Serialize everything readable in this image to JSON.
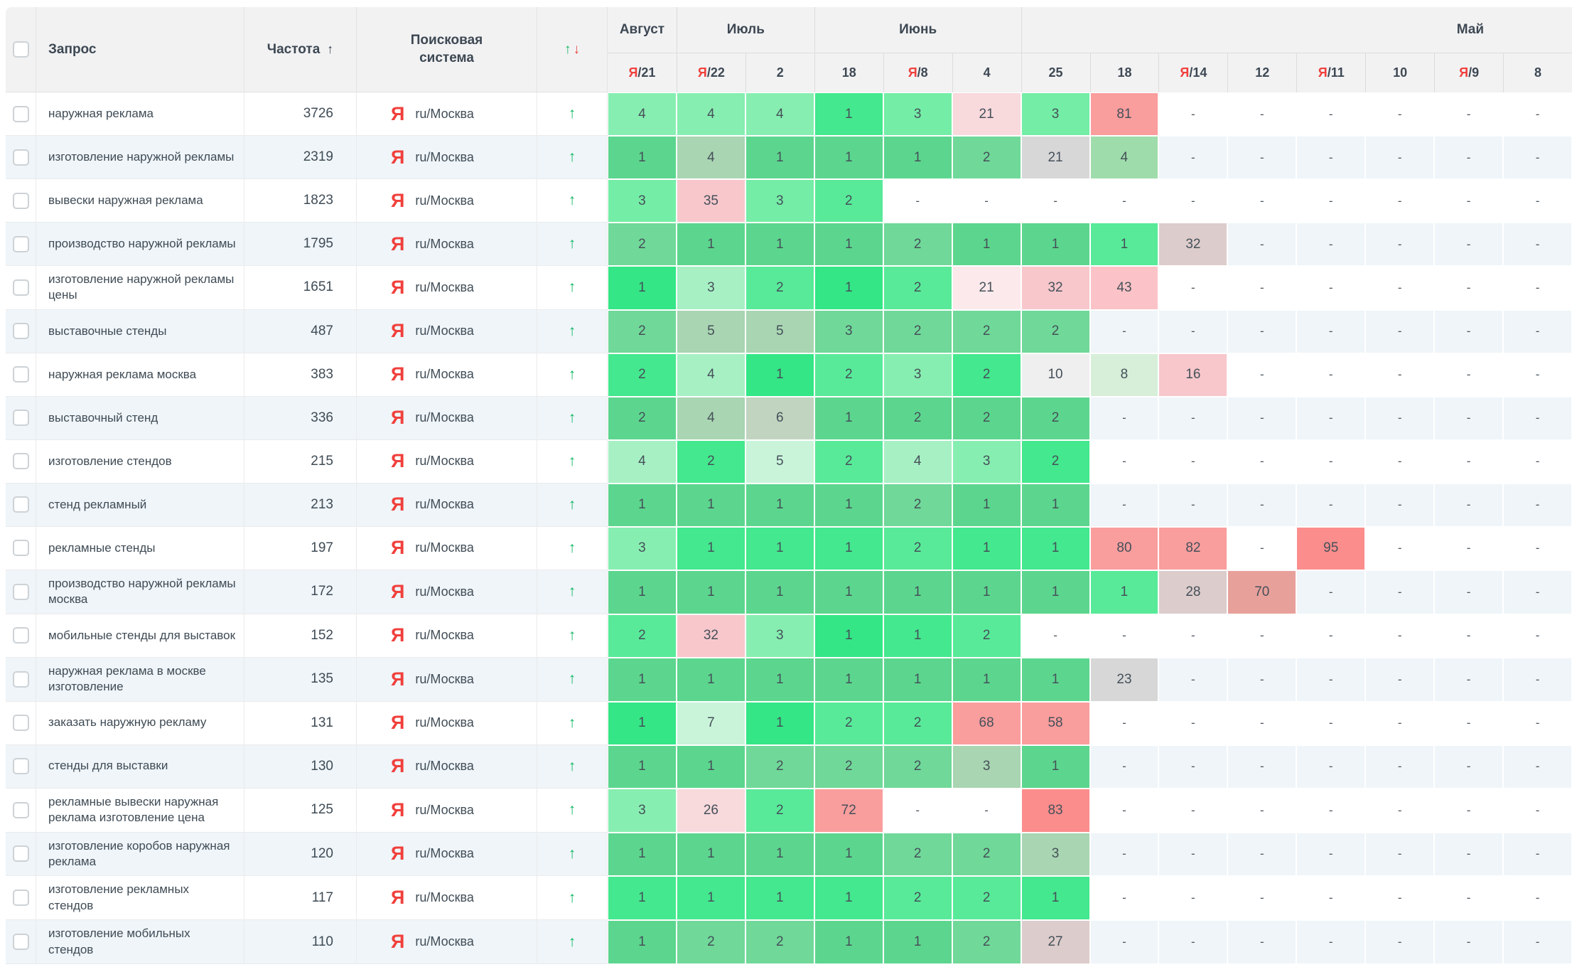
{
  "header": {
    "query_label": "Запрос",
    "frequency_label": "Частота",
    "engine_label": "Поисковая система",
    "sort_asc_icon": "↑",
    "trend_up_icon": "↑",
    "trend_down_icon": "↓",
    "month_groups": [
      {
        "label": "Август",
        "span": 1
      },
      {
        "label": "Июль",
        "span": 2
      },
      {
        "label": "Июнь",
        "span": 3
      },
      {
        "label": "Май",
        "span": 8
      }
    ],
    "date_columns": [
      {
        "label": "21",
        "yandex_update": true
      },
      {
        "label": "22",
        "yandex_update": true
      },
      {
        "label": "2",
        "yandex_update": false
      },
      {
        "label": "18",
        "yandex_update": false
      },
      {
        "label": "8",
        "yandex_update": true
      },
      {
        "label": "4",
        "yandex_update": false
      },
      {
        "label": "25",
        "yandex_update": false
      },
      {
        "label": "18",
        "yandex_update": false
      },
      {
        "label": "14",
        "yandex_update": true
      },
      {
        "label": "12",
        "yandex_update": false
      },
      {
        "label": "11",
        "yandex_update": true
      },
      {
        "label": "10",
        "yandex_update": false
      },
      {
        "label": "9",
        "yandex_update": true
      },
      {
        "label": "8",
        "yandex_update": false
      }
    ]
  },
  "engine": {
    "yandex_letter": "Я",
    "region_label": "ru/Москва"
  },
  "dash": "-",
  "palette": {
    "g0": "#34e686",
    "g1": "#44e88e",
    "g2": "#58ea99",
    "g3": "#74eda6",
    "g4": "#87eeb1",
    "g5": "#a7f0c4",
    "g6": "#c9f4da",
    "gp": "#d7efd9",
    "mg": "#9fdcab",
    "m1": "#5cd68e",
    "m2": "#70d899",
    "gg": "#a9d5b2",
    "gh": "#c1d4c0",
    "gr1": "#d7d7d8",
    "gr2": "#efeff0",
    "p0": "#fce9eb",
    "p1": "#f8d9dc",
    "p2": "#f7c7cc",
    "p3": "#fbc3c7",
    "s1": "#f99d9d",
    "s2": "#fb8d8d",
    "d1": "#dccccb",
    "d2": "#e8a09b",
    "w": ""
  },
  "rows": [
    {
      "query": "наружная реклама",
      "frequency": "3726",
      "values": [
        "4",
        "4",
        "4",
        "1",
        "3",
        "21",
        "3",
        "81",
        "-",
        "-",
        "-",
        "-",
        "-",
        "-"
      ],
      "colors": [
        "g4",
        "g4",
        "g4",
        "g1",
        "g3",
        "p1",
        "g3",
        "s1",
        "w",
        "w",
        "w",
        "w",
        "w",
        "w"
      ]
    },
    {
      "query": "изготовление наружной рекламы",
      "frequency": "2319",
      "values": [
        "1",
        "4",
        "1",
        "1",
        "1",
        "2",
        "21",
        "4",
        "-",
        "-",
        "-",
        "-",
        "-",
        "-"
      ],
      "colors": [
        "m1",
        "gg",
        "m1",
        "m1",
        "m1",
        "m2",
        "gr1",
        "mg",
        "w",
        "w",
        "w",
        "w",
        "w",
        "w"
      ]
    },
    {
      "query": "вывески наружная реклама",
      "frequency": "1823",
      "values": [
        "3",
        "35",
        "3",
        "2",
        "-",
        "-",
        "-",
        "-",
        "-",
        "-",
        "-",
        "-",
        "-",
        "-"
      ],
      "colors": [
        "g3",
        "p2",
        "g3",
        "g2",
        "w",
        "w",
        "w",
        "w",
        "w",
        "w",
        "w",
        "w",
        "w",
        "w"
      ]
    },
    {
      "query": "производство наружной рекламы",
      "frequency": "1795",
      "values": [
        "2",
        "1",
        "1",
        "1",
        "2",
        "1",
        "1",
        "1",
        "32",
        "-",
        "-",
        "-",
        "-",
        "-"
      ],
      "colors": [
        "m2",
        "m1",
        "m1",
        "m1",
        "m2",
        "m1",
        "m1",
        "g2",
        "d1",
        "w",
        "w",
        "w",
        "w",
        "w"
      ]
    },
    {
      "query": "изготовление наружной рекламы цены",
      "frequency": "1651",
      "values": [
        "1",
        "3",
        "2",
        "1",
        "2",
        "21",
        "32",
        "43",
        "-",
        "-",
        "-",
        "-",
        "-",
        "-"
      ],
      "colors": [
        "g0",
        "g5",
        "g2",
        "g0",
        "g2",
        "p0",
        "p2",
        "p3",
        "w",
        "w",
        "w",
        "w",
        "w",
        "w"
      ]
    },
    {
      "query": "выставочные стенды",
      "frequency": "487",
      "values": [
        "2",
        "5",
        "5",
        "3",
        "2",
        "2",
        "2",
        "-",
        "-",
        "-",
        "-",
        "-",
        "-",
        "-"
      ],
      "colors": [
        "m2",
        "gg",
        "gg",
        "m2",
        "m2",
        "m2",
        "m2",
        "w",
        "w",
        "w",
        "w",
        "w",
        "w",
        "w"
      ]
    },
    {
      "query": "наружная реклама москва",
      "frequency": "383",
      "values": [
        "2",
        "4",
        "1",
        "2",
        "3",
        "2",
        "10",
        "8",
        "16",
        "-",
        "-",
        "-",
        "-",
        "-"
      ],
      "colors": [
        "g1",
        "g5",
        "g0",
        "g2",
        "g4",
        "g1",
        "gr2",
        "gp",
        "p2",
        "w",
        "w",
        "w",
        "w",
        "w"
      ]
    },
    {
      "query": "выставочный стенд",
      "frequency": "336",
      "values": [
        "2",
        "4",
        "6",
        "1",
        "2",
        "2",
        "2",
        "-",
        "-",
        "-",
        "-",
        "-",
        "-",
        "-"
      ],
      "colors": [
        "m1",
        "gg",
        "gh",
        "m1",
        "m1",
        "m1",
        "m1",
        "w",
        "w",
        "w",
        "w",
        "w",
        "w",
        "w"
      ]
    },
    {
      "query": "изготовление стендов",
      "frequency": "215",
      "values": [
        "4",
        "2",
        "5",
        "2",
        "4",
        "3",
        "2",
        "-",
        "-",
        "-",
        "-",
        "-",
        "-",
        "-"
      ],
      "colors": [
        "g5",
        "g1",
        "g6",
        "g2",
        "g5",
        "g4",
        "g1",
        "w",
        "w",
        "w",
        "w",
        "w",
        "w",
        "w"
      ]
    },
    {
      "query": "стенд рекламный",
      "frequency": "213",
      "values": [
        "1",
        "1",
        "1",
        "1",
        "2",
        "1",
        "1",
        "-",
        "-",
        "-",
        "-",
        "-",
        "-",
        "-"
      ],
      "colors": [
        "m1",
        "m1",
        "m1",
        "m1",
        "m2",
        "m1",
        "m1",
        "w",
        "w",
        "w",
        "w",
        "w",
        "w",
        "w"
      ]
    },
    {
      "query": "рекламные стенды",
      "frequency": "197",
      "values": [
        "3",
        "1",
        "1",
        "1",
        "2",
        "1",
        "1",
        "80",
        "82",
        "-",
        "95",
        "-",
        "-",
        "-"
      ],
      "colors": [
        "g4",
        "g1",
        "g1",
        "g1",
        "g2",
        "g1",
        "g1",
        "s1",
        "s1",
        "w",
        "s2",
        "w",
        "w",
        "w"
      ]
    },
    {
      "query": "производство наружной рекламы москва",
      "frequency": "172",
      "values": [
        "1",
        "1",
        "1",
        "1",
        "1",
        "1",
        "1",
        "1",
        "28",
        "70",
        "-",
        "-",
        "-",
        "-"
      ],
      "colors": [
        "m1",
        "m1",
        "m1",
        "m1",
        "m1",
        "m1",
        "m1",
        "g2",
        "d1",
        "d2",
        "w",
        "w",
        "w",
        "w"
      ]
    },
    {
      "query": "мобильные стенды для выставок",
      "frequency": "152",
      "values": [
        "2",
        "32",
        "3",
        "1",
        "1",
        "2",
        "-",
        "-",
        "-",
        "-",
        "-",
        "-",
        "-",
        "-"
      ],
      "colors": [
        "g2",
        "p2",
        "g4",
        "g0",
        "g1",
        "g2",
        "w",
        "w",
        "w",
        "w",
        "w",
        "w",
        "w",
        "w"
      ]
    },
    {
      "query": "наружная реклама в москве изготовление",
      "frequency": "135",
      "values": [
        "1",
        "1",
        "1",
        "1",
        "1",
        "1",
        "1",
        "23",
        "-",
        "-",
        "-",
        "-",
        "-",
        "-"
      ],
      "colors": [
        "m1",
        "m1",
        "m1",
        "m1",
        "m1",
        "m1",
        "m1",
        "gr1",
        "w",
        "w",
        "w",
        "w",
        "w",
        "w"
      ]
    },
    {
      "query": "заказать наружную рекламу",
      "frequency": "131",
      "values": [
        "1",
        "7",
        "1",
        "2",
        "2",
        "68",
        "58",
        "-",
        "-",
        "-",
        "-",
        "-",
        "-",
        "-"
      ],
      "colors": [
        "g0",
        "g6",
        "g0",
        "g2",
        "g2",
        "s1",
        "s1",
        "w",
        "w",
        "w",
        "w",
        "w",
        "w",
        "w"
      ]
    },
    {
      "query": "стенды для выставки",
      "frequency": "130",
      "values": [
        "1",
        "1",
        "2",
        "2",
        "2",
        "3",
        "1",
        "-",
        "-",
        "-",
        "-",
        "-",
        "-",
        "-"
      ],
      "colors": [
        "m1",
        "m1",
        "m2",
        "m2",
        "m2",
        "gg",
        "m1",
        "w",
        "w",
        "w",
        "w",
        "w",
        "w",
        "w"
      ]
    },
    {
      "query": "рекламные вывески наружная реклама изготовление цена",
      "frequency": "125",
      "values": [
        "3",
        "26",
        "2",
        "72",
        "-",
        "-",
        "83",
        "-",
        "-",
        "-",
        "-",
        "-",
        "-",
        "-"
      ],
      "colors": [
        "g4",
        "p1",
        "g2",
        "s1",
        "w",
        "w",
        "s2",
        "w",
        "w",
        "w",
        "w",
        "w",
        "w",
        "w"
      ]
    },
    {
      "query": "изготовление коробов наружная реклама",
      "frequency": "120",
      "values": [
        "1",
        "1",
        "1",
        "1",
        "2",
        "2",
        "3",
        "-",
        "-",
        "-",
        "-",
        "-",
        "-",
        "-"
      ],
      "colors": [
        "m1",
        "m1",
        "m1",
        "m1",
        "m2",
        "m2",
        "gg",
        "w",
        "w",
        "w",
        "w",
        "w",
        "w",
        "w"
      ]
    },
    {
      "query": "изготовление рекламных стендов",
      "frequency": "117",
      "values": [
        "1",
        "1",
        "1",
        "1",
        "2",
        "2",
        "1",
        "-",
        "-",
        "-",
        "-",
        "-",
        "-",
        "-"
      ],
      "colors": [
        "g1",
        "g1",
        "g1",
        "g1",
        "g2",
        "g2",
        "g1",
        "w",
        "w",
        "w",
        "w",
        "w",
        "w",
        "w"
      ]
    },
    {
      "query": "изготовление мобильных стендов",
      "frequency": "110",
      "values": [
        "1",
        "2",
        "2",
        "1",
        "1",
        "2",
        "27",
        "-",
        "-",
        "-",
        "-",
        "-",
        "-",
        "-"
      ],
      "colors": [
        "m1",
        "m2",
        "m2",
        "m1",
        "m1",
        "m2",
        "d1",
        "w",
        "w",
        "w",
        "w",
        "w",
        "w",
        "w"
      ]
    }
  ]
}
